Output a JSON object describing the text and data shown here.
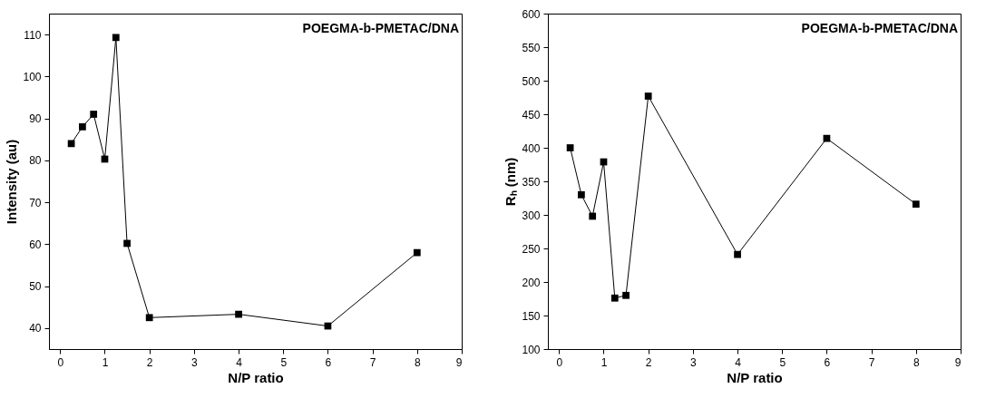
{
  "chart_data": [
    {
      "type": "line",
      "x": [
        0.25,
        0.5,
        0.75,
        1,
        1.25,
        1.5,
        2,
        4,
        6,
        8
      ],
      "xlabel": "N/P ratio",
      "ylabel": "Intensity (au)",
      "xlim": [
        -0.25,
        9
      ],
      "xticks": [
        0,
        1,
        2,
        3,
        4,
        5,
        6,
        7,
        8,
        9
      ],
      "ylim": [
        35,
        115
      ],
      "yticks": [
        40,
        50,
        60,
        70,
        80,
        90,
        100,
        110
      ],
      "marker": "square",
      "grid": false,
      "annotations": [
        "POEGMA-b-PMETAC/DNA"
      ],
      "series": [
        {
          "color": "#000000",
          "values": [
            84,
            88,
            91,
            80.3,
            109.3,
            60.2,
            42.5,
            43.3,
            40.5,
            58
          ]
        }
      ]
    },
    {
      "type": "line",
      "x": [
        0.25,
        0.5,
        0.75,
        1,
        1.25,
        1.5,
        2,
        4,
        6,
        8
      ],
      "xlabel": "N/P ratio",
      "ylabel": "Rₕ (nm)",
      "xlim": [
        -0.25,
        9
      ],
      "xticks": [
        0,
        1,
        2,
        3,
        4,
        5,
        6,
        7,
        8,
        9
      ],
      "ylim": [
        100,
        600
      ],
      "yticks": [
        100,
        150,
        200,
        250,
        300,
        350,
        400,
        450,
        500,
        550,
        600
      ],
      "marker": "square",
      "grid": false,
      "annotations": [
        "POEGMA-b-PMETAC/DNA"
      ],
      "series": [
        {
          "color": "#000000",
          "values": [
            400,
            330,
            298,
            379,
            176,
            180,
            477,
            241,
            414,
            316
          ]
        }
      ]
    }
  ]
}
